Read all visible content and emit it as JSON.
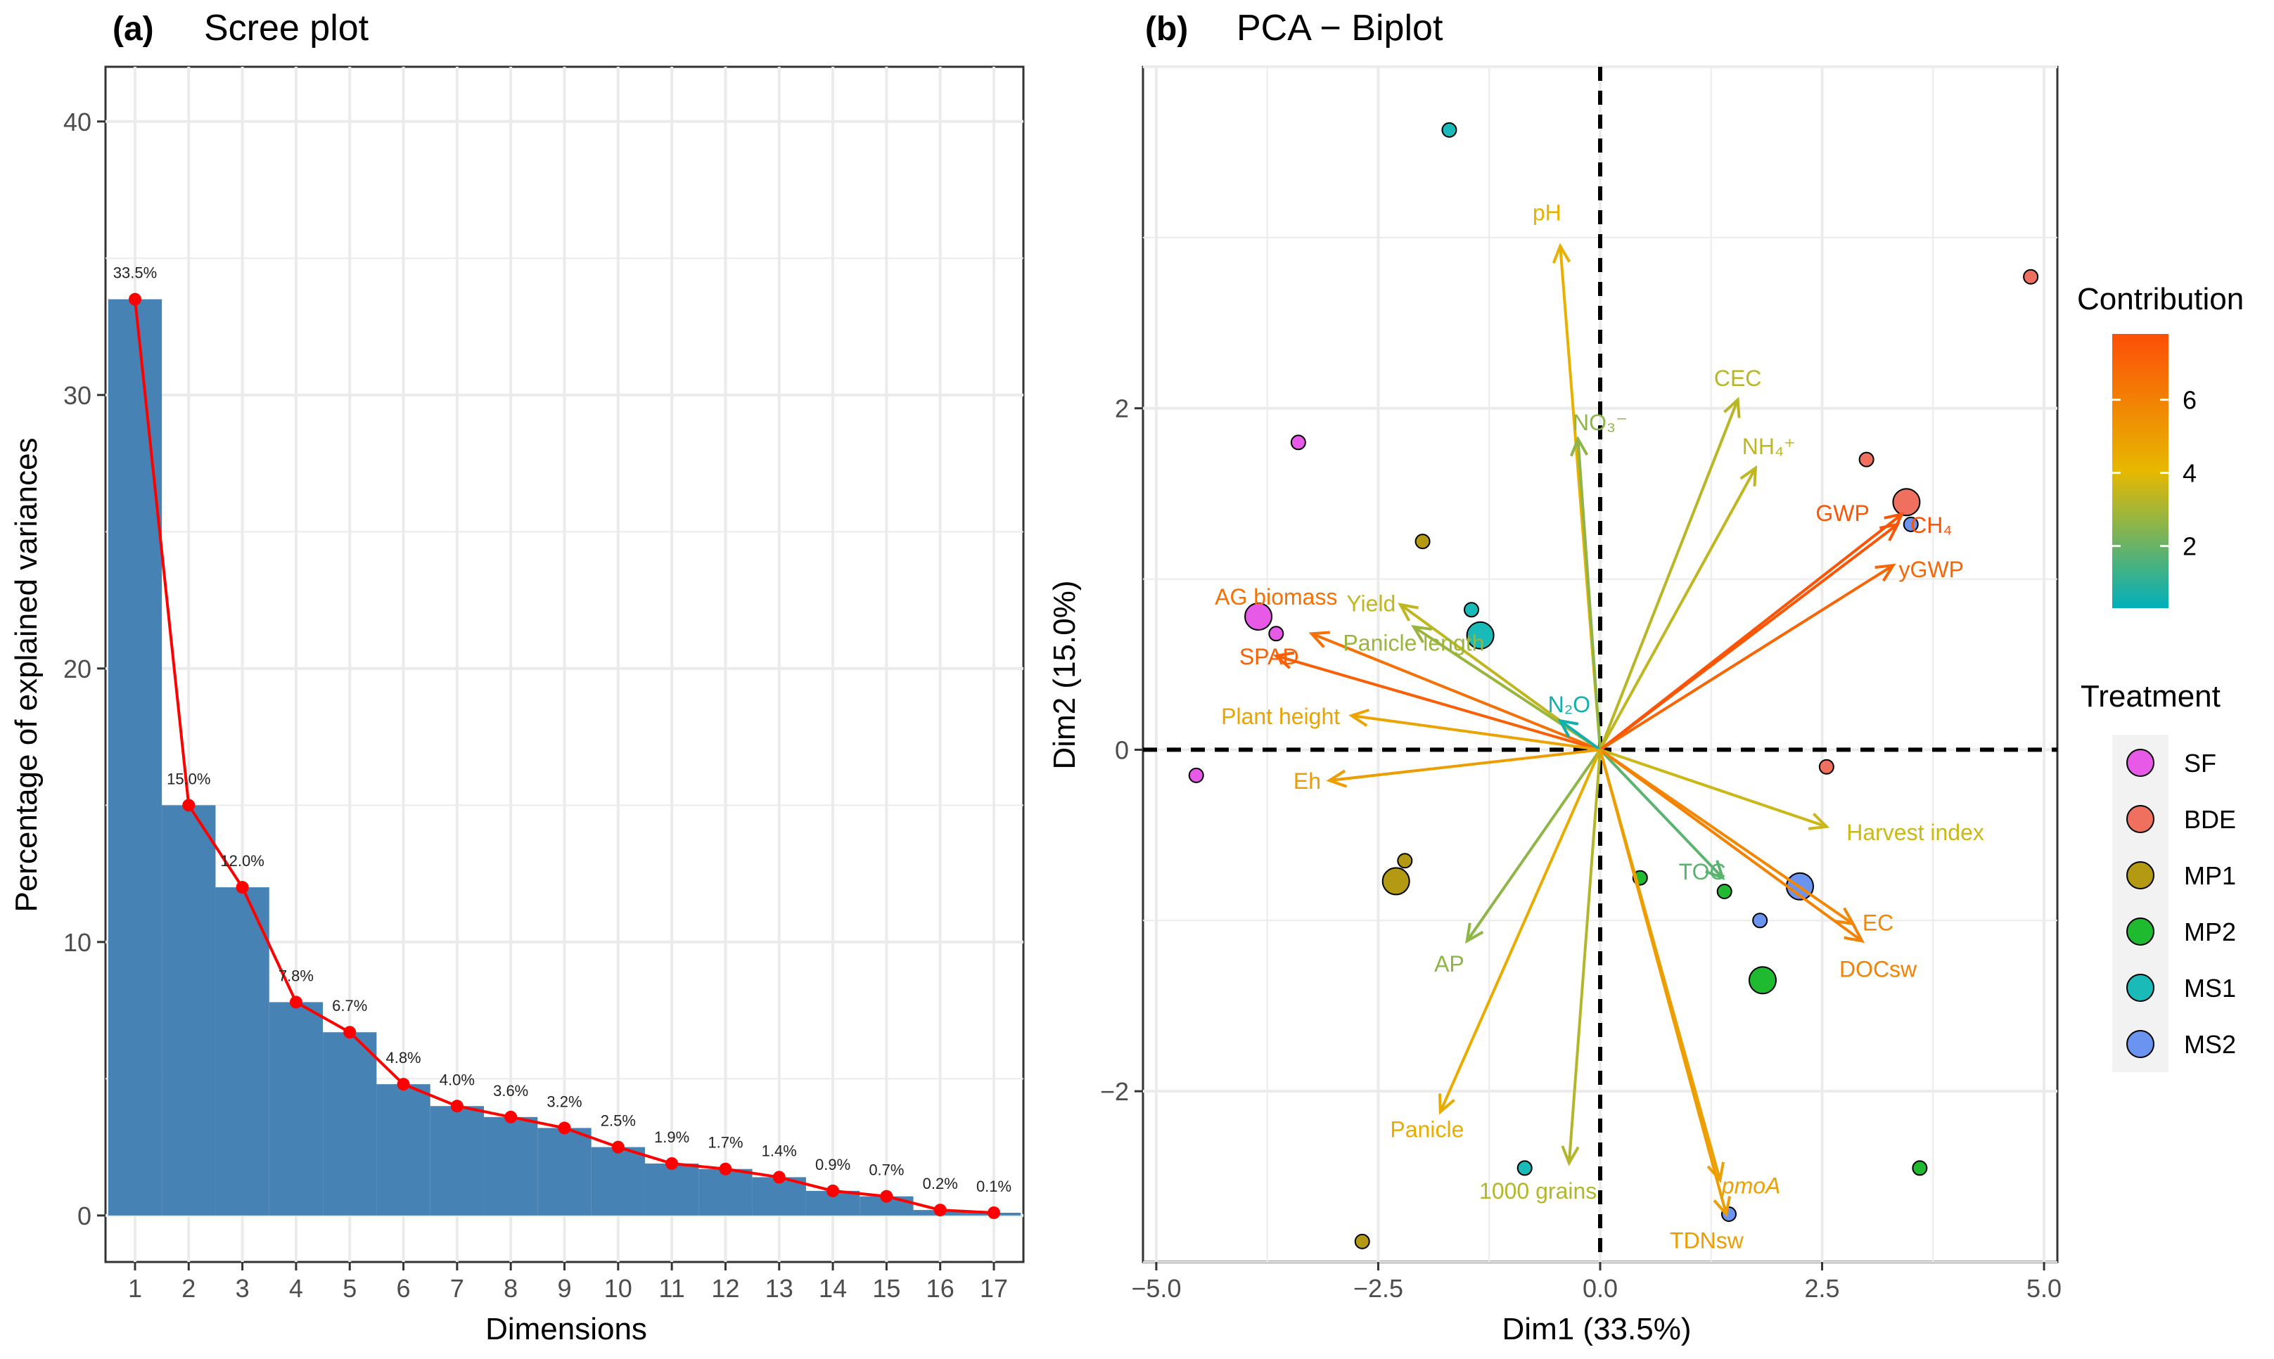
{
  "chart_data": [
    {
      "type": "bar",
      "panel_label": "(a)",
      "title": "Scree plot",
      "xlabel": "Dimensions",
      "ylabel": "Percentage of explained variances",
      "categories": [
        "1",
        "2",
        "3",
        "4",
        "5",
        "6",
        "7",
        "8",
        "9",
        "10",
        "11",
        "12",
        "13",
        "14",
        "15",
        "16",
        "17"
      ],
      "values": [
        33.5,
        15.0,
        12.0,
        7.8,
        6.7,
        4.8,
        4.0,
        3.6,
        3.2,
        2.5,
        1.9,
        1.7,
        1.4,
        0.9,
        0.7,
        0.2,
        0.1
      ],
      "value_labels": [
        "33.5%",
        "15.0%",
        "12.0%",
        "7.8%",
        "6.7%",
        "4.8%",
        "4.0%",
        "3.6%",
        "3.2%",
        "2.5%",
        "1.9%",
        "1.7%",
        "1.4%",
        "0.9%",
        "0.7%",
        "0.2%",
        "0.1%"
      ],
      "ylim": [
        -1.7,
        42
      ],
      "yticks": [
        0,
        10,
        20,
        30,
        40
      ],
      "bar_color": "#4682B4",
      "line_color": "#FF0000"
    },
    {
      "type": "scatter",
      "panel_label": "(b)",
      "title": "PCA − Biplot",
      "xlabel": "Dim1 (33.5%)",
      "ylabel": "Dim2 (15.0%)",
      "xlim": [
        -5.15,
        5.15
      ],
      "ylim": [
        -3.0,
        4.0
      ],
      "xticks": [
        -5.0,
        -2.5,
        0.0,
        2.5,
        5.0
      ],
      "xtick_labels": [
        "−5.0",
        "−2.5",
        "0.0",
        "2.5",
        "5.0"
      ],
      "yticks": [
        -2,
        0,
        2
      ],
      "ytick_labels": [
        "−2",
        "0",
        "2"
      ],
      "treatments": [
        {
          "name": "SF",
          "color": "#E75AE7"
        },
        {
          "name": "BDE",
          "color": "#F0705F"
        },
        {
          "name": "MP1",
          "color": "#B39A12"
        },
        {
          "name": "MP2",
          "color": "#1FBA30"
        },
        {
          "name": "MS1",
          "color": "#19BAB8"
        },
        {
          "name": "MS2",
          "color": "#6B93F0"
        }
      ],
      "points": [
        {
          "t": "SF",
          "x": -3.85,
          "y": 0.78,
          "s": 1.0
        },
        {
          "t": "SF",
          "x": -3.65,
          "y": 0.68,
          "s": 0.5
        },
        {
          "t": "SF",
          "x": -3.4,
          "y": 1.8,
          "s": 0.5
        },
        {
          "t": "SF",
          "x": -4.55,
          "y": -0.15,
          "s": 0.5
        },
        {
          "t": "BDE",
          "x": 3.45,
          "y": 1.45,
          "s": 1.0
        },
        {
          "t": "BDE",
          "x": 3.0,
          "y": 1.7,
          "s": 0.5
        },
        {
          "t": "BDE",
          "x": 4.85,
          "y": 2.77,
          "s": 0.5
        },
        {
          "t": "BDE",
          "x": 2.55,
          "y": -0.1,
          "s": 0.5
        },
        {
          "t": "MP1",
          "x": -2.3,
          "y": -0.77,
          "s": 1.0
        },
        {
          "t": "MP1",
          "x": -2.2,
          "y": -0.65,
          "s": 0.5
        },
        {
          "t": "MP1",
          "x": -2.0,
          "y": 1.22,
          "s": 0.5
        },
        {
          "t": "MP1",
          "x": -2.68,
          "y": -2.88,
          "s": 0.5
        },
        {
          "t": "MP2",
          "x": 1.83,
          "y": -1.35,
          "s": 1.0
        },
        {
          "t": "MP2",
          "x": 1.4,
          "y": -0.83,
          "s": 0.5
        },
        {
          "t": "MP2",
          "x": 0.45,
          "y": -0.75,
          "s": 0.5
        },
        {
          "t": "MP2",
          "x": 3.6,
          "y": -2.45,
          "s": 0.5
        },
        {
          "t": "MS1",
          "x": -1.35,
          "y": 0.67,
          "s": 1.0
        },
        {
          "t": "MS1",
          "x": -1.45,
          "y": 0.82,
          "s": 0.5
        },
        {
          "t": "MS1",
          "x": -1.7,
          "y": 3.63,
          "s": 0.5
        },
        {
          "t": "MS1",
          "x": -0.85,
          "y": -2.45,
          "s": 0.5
        },
        {
          "t": "MS2",
          "x": 2.25,
          "y": -0.8,
          "s": 1.0
        },
        {
          "t": "MS2",
          "x": 1.8,
          "y": -1.0,
          "s": 0.5
        },
        {
          "t": "MS2",
          "x": 3.5,
          "y": 1.32,
          "s": 0.5
        },
        {
          "t": "MS2",
          "x": 1.45,
          "y": -2.72,
          "s": 0.5
        }
      ],
      "variables": [
        {
          "name": "pH",
          "x": -0.45,
          "y": 2.95,
          "contrib": 4.3,
          "lx": -0.6,
          "ly": 3.15
        },
        {
          "name": "CEC",
          "x": 1.55,
          "y": 2.05,
          "contrib": 3.3,
          "lx": 1.55,
          "ly": 2.18
        },
        {
          "name": "NO₃⁻",
          "x": -0.25,
          "y": 1.82,
          "contrib": 2.6,
          "lx": 0.0,
          "ly": 1.92
        },
        {
          "name": "NH₄⁺",
          "x": 1.75,
          "y": 1.65,
          "contrib": 3.4,
          "lx": 1.9,
          "ly": 1.78
        },
        {
          "name": "GWP",
          "x": 3.35,
          "y": 1.32,
          "contrib": 7.5,
          "lx": 2.73,
          "ly": 1.39
        },
        {
          "name": "CH₄",
          "x": 3.4,
          "y": 1.38,
          "contrib": 7.6,
          "lx": 3.73,
          "ly": 1.32
        },
        {
          "name": "yGWP",
          "x": 3.3,
          "y": 1.08,
          "contrib": 7.0,
          "lx": 3.73,
          "ly": 1.06
        },
        {
          "name": "AG biomass",
          "x": -3.25,
          "y": 0.68,
          "contrib": 6.6,
          "lx": -3.65,
          "ly": 0.9
        },
        {
          "name": "Yield",
          "x": -2.25,
          "y": 0.85,
          "contrib": 3.4,
          "lx": -2.58,
          "ly": 0.86
        },
        {
          "name": "Panicle length",
          "x": -2.1,
          "y": 0.72,
          "contrib": 2.8,
          "lx": -2.1,
          "ly": 0.63
        },
        {
          "name": "SPAD",
          "x": -3.65,
          "y": 0.55,
          "contrib": 7.2,
          "lx": -3.73,
          "ly": 0.55
        },
        {
          "name": "Plant height",
          "x": -2.8,
          "y": 0.2,
          "contrib": 4.8,
          "lx": -3.6,
          "ly": 0.2
        },
        {
          "name": "N₂O",
          "x": -0.45,
          "y": 0.17,
          "contrib": 0.6,
          "lx": -0.35,
          "ly": 0.27
        },
        {
          "name": "Eh",
          "x": -3.05,
          "y": -0.18,
          "contrib": 5.0,
          "lx": -3.3,
          "ly": -0.18
        },
        {
          "name": "Harvest index",
          "x": 2.55,
          "y": -0.45,
          "contrib": 3.6,
          "lx": 3.55,
          "ly": -0.48
        },
        {
          "name": "TOC",
          "x": 1.38,
          "y": -0.75,
          "contrib": 1.8,
          "lx": 1.15,
          "ly": -0.71
        },
        {
          "name": "EC",
          "x": 2.85,
          "y": -1.02,
          "contrib": 5.8,
          "lx": 3.13,
          "ly": -1.01
        },
        {
          "name": "DOCsw",
          "x": 2.95,
          "y": -1.12,
          "contrib": 6.0,
          "lx": 3.13,
          "ly": -1.28
        },
        {
          "name": "AP",
          "x": -1.5,
          "y": -1.12,
          "contrib": 2.6,
          "lx": -1.7,
          "ly": -1.25
        },
        {
          "name": "Panicle",
          "x": -1.8,
          "y": -2.12,
          "contrib": 4.5,
          "lx": -1.95,
          "ly": -2.22
        },
        {
          "name": "1000 grains",
          "x": -0.35,
          "y": -2.42,
          "contrib": 3.2,
          "lx": -0.7,
          "ly": -2.58
        },
        {
          "name": "pmoA",
          "x": 1.35,
          "y": -2.52,
          "contrib": 4.9,
          "lx": 1.7,
          "ly": -2.55
        },
        {
          "name": "TDNsw",
          "x": 1.42,
          "y": -2.72,
          "contrib": 5.0,
          "lx": 1.2,
          "ly": -2.87
        }
      ],
      "contribution_legend": {
        "title": "Contribution",
        "ticks": [
          2,
          4,
          6
        ],
        "min": 0.3,
        "max": 7.8
      },
      "treatment_legend_title": "Treatment"
    }
  ]
}
